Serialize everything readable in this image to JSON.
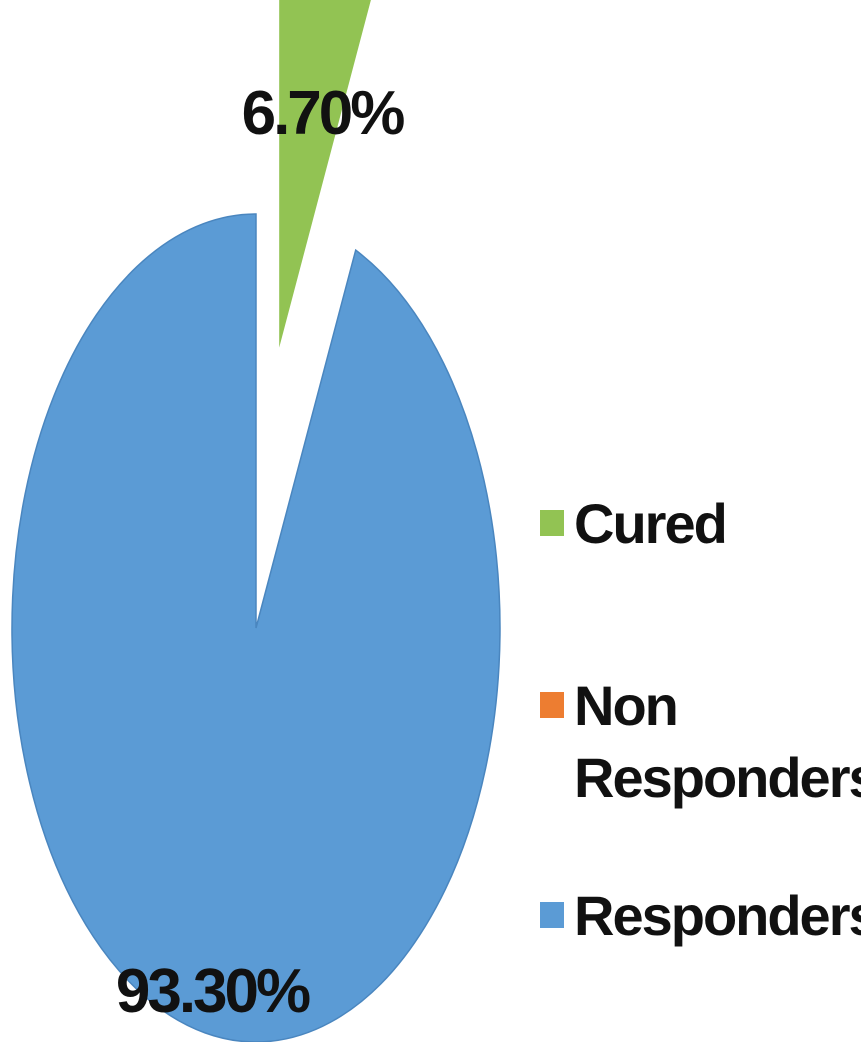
{
  "chart_data": {
    "type": "pie",
    "slices": [
      {
        "name": "Cured",
        "value": 6.7,
        "label": "6.70%",
        "color": "#92c353"
      },
      {
        "name": "Non Responders",
        "value": 0,
        "label": "",
        "color": "#ed7d31"
      },
      {
        "name": "Responders",
        "value": 93.3,
        "label": "93.30%",
        "color": "#5b9bd5"
      }
    ],
    "legend": {
      "position": "right",
      "entries": [
        "Cured",
        "Non Responders",
        "Responders"
      ]
    }
  }
}
